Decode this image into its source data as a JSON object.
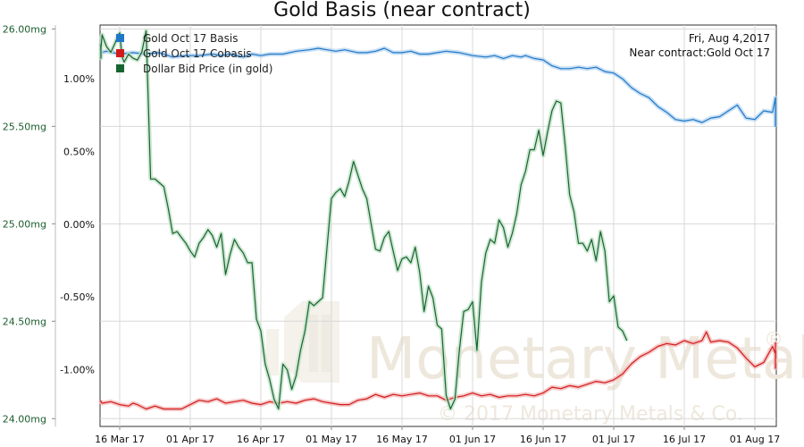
{
  "chart_data": {
    "type": "line",
    "title": "Gold Basis (near contract)",
    "date_info": "Fri, Aug 4,2017",
    "contract_info": "Near contract:Gold Oct 17",
    "watermark": {
      "name": "Monetary Metals",
      "copyright": "© 2017 Monetary Metals & Co.",
      "mark": "®"
    },
    "left_axis": {
      "ticks": [
        24.0,
        24.5,
        25.0,
        25.5,
        26.0
      ],
      "tick_labels": [
        "24.00mg",
        "24.50mg",
        "25.00mg",
        "25.50mg",
        "26.00mg"
      ],
      "ylim": [
        23.96,
        26.02
      ]
    },
    "right_axis": {
      "ticks": [
        -1.0,
        -0.5,
        0.0,
        0.5,
        1.0
      ],
      "tick_labels": [
        "-1.00%",
        "-0.50%",
        "0.00%",
        "0.50%",
        "1.00%"
      ],
      "ylim": [
        -1.39,
        1.37
      ]
    },
    "x_axis": {
      "ticks": [
        8,
        24,
        40,
        56,
        72,
        88,
        104,
        120,
        136,
        152
      ],
      "tick_labels": [
        "16 Mar 17",
        "01 Apr 17",
        "16 Apr 17",
        "01 May 17",
        "16 May 17",
        "01 Jun 17",
        "16 Jun 17",
        "01 Jul 17",
        "16 Jul 17",
        "01 Aug 17"
      ],
      "xlim": [
        0,
        155
      ]
    },
    "grid": true,
    "legend_position": "top-left",
    "series": [
      {
        "name": "Gold Oct 17 Basis",
        "color": "#1f78c8",
        "axis": "right",
        "points": [
          [
            0,
            1.17
          ],
          [
            1,
            1.16
          ],
          [
            2,
            1.18
          ],
          [
            5,
            1.19
          ],
          [
            8,
            1.17
          ],
          [
            11,
            1.18
          ],
          [
            14,
            1.17
          ],
          [
            17,
            1.18
          ],
          [
            20,
            1.15
          ],
          [
            23,
            1.16
          ],
          [
            26,
            1.16
          ],
          [
            29,
            1.17
          ],
          [
            31,
            1.16
          ],
          [
            33,
            1.17
          ],
          [
            36,
            1.15
          ],
          [
            38,
            1.17
          ],
          [
            40,
            1.16
          ],
          [
            42,
            1.17
          ],
          [
            45,
            1.17
          ],
          [
            48,
            1.19
          ],
          [
            51,
            1.2
          ],
          [
            53,
            1.21
          ],
          [
            55,
            1.2
          ],
          [
            57,
            1.19
          ],
          [
            59,
            1.2
          ],
          [
            62,
            1.18
          ],
          [
            64,
            1.18
          ],
          [
            66,
            1.19
          ],
          [
            68,
            1.21
          ],
          [
            70,
            1.18
          ],
          [
            72,
            1.18
          ],
          [
            74,
            1.19
          ],
          [
            76,
            1.17
          ],
          [
            78,
            1.17
          ],
          [
            80,
            1.18
          ],
          [
            82,
            1.19
          ],
          [
            85,
            1.18
          ],
          [
            88,
            1.16
          ],
          [
            91,
            1.15
          ],
          [
            93,
            1.16
          ],
          [
            95,
            1.14
          ],
          [
            97,
            1.16
          ],
          [
            99,
            1.15
          ],
          [
            100,
            1.16
          ],
          [
            102,
            1.14
          ],
          [
            104,
            1.13
          ],
          [
            106,
            1.09
          ],
          [
            108,
            1.07
          ],
          [
            110,
            1.07
          ],
          [
            112,
            1.08
          ],
          [
            114,
            1.07
          ],
          [
            116,
            1.08
          ],
          [
            118,
            1.05
          ],
          [
            120,
            1.04
          ],
          [
            122,
            1.0
          ],
          [
            124,
            0.94
          ],
          [
            126,
            0.9
          ],
          [
            128,
            0.87
          ],
          [
            130,
            0.81
          ],
          [
            132,
            0.77
          ],
          [
            134,
            0.72
          ],
          [
            136,
            0.71
          ],
          [
            138,
            0.72
          ],
          [
            140,
            0.7
          ],
          [
            142,
            0.73
          ],
          [
            144,
            0.74
          ],
          [
            146,
            0.78
          ],
          [
            148,
            0.82
          ],
          [
            150,
            0.73
          ],
          [
            152,
            0.72
          ],
          [
            154,
            0.78
          ],
          [
            156,
            0.77
          ],
          [
            158,
            0.87
          ],
          [
            160,
            0.86
          ],
          [
            162,
            0.67
          ]
        ]
      },
      {
        "name": "Gold Oct 17 Cobasis",
        "color": "#d21a1a",
        "axis": "right",
        "points": [
          [
            0,
            -1.21
          ],
          [
            2,
            -1.22
          ],
          [
            4,
            -1.23
          ],
          [
            6,
            -1.22
          ],
          [
            8,
            -1.24
          ],
          [
            10,
            -1.25
          ],
          [
            11,
            -1.23
          ],
          [
            12,
            -1.24
          ],
          [
            14,
            -1.27
          ],
          [
            16,
            -1.25
          ],
          [
            18,
            -1.27
          ],
          [
            20,
            -1.27
          ],
          [
            22,
            -1.27
          ],
          [
            24,
            -1.24
          ],
          [
            26,
            -1.21
          ],
          [
            28,
            -1.22
          ],
          [
            30,
            -1.2
          ],
          [
            32,
            -1.23
          ],
          [
            34,
            -1.22
          ],
          [
            36,
            -1.21
          ],
          [
            38,
            -1.23
          ],
          [
            40,
            -1.24
          ],
          [
            42,
            -1.22
          ],
          [
            44,
            -1.23
          ],
          [
            46,
            -1.22
          ],
          [
            48,
            -1.23
          ],
          [
            50,
            -1.21
          ],
          [
            52,
            -1.2
          ],
          [
            54,
            -1.22
          ],
          [
            56,
            -1.23
          ],
          [
            58,
            -1.24
          ],
          [
            60,
            -1.24
          ],
          [
            62,
            -1.21
          ],
          [
            64,
            -1.2
          ],
          [
            66,
            -1.17
          ],
          [
            68,
            -1.19
          ],
          [
            70,
            -1.17
          ],
          [
            72,
            -1.18
          ],
          [
            74,
            -1.17
          ],
          [
            76,
            -1.16
          ],
          [
            78,
            -1.18
          ],
          [
            80,
            -1.18
          ],
          [
            82,
            -1.21
          ],
          [
            84,
            -1.19
          ],
          [
            86,
            -1.18
          ],
          [
            88,
            -1.16
          ],
          [
            90,
            -1.18
          ],
          [
            92,
            -1.17
          ],
          [
            94,
            -1.19
          ],
          [
            96,
            -1.18
          ],
          [
            98,
            -1.18
          ],
          [
            100,
            -1.17
          ],
          [
            102,
            -1.18
          ],
          [
            104,
            -1.16
          ],
          [
            106,
            -1.12
          ],
          [
            108,
            -1.13
          ],
          [
            110,
            -1.11
          ],
          [
            112,
            -1.12
          ],
          [
            114,
            -1.1
          ],
          [
            116,
            -1.08
          ],
          [
            118,
            -1.09
          ],
          [
            120,
            -1.07
          ],
          [
            122,
            -1.03
          ],
          [
            124,
            -0.96
          ],
          [
            126,
            -0.91
          ],
          [
            128,
            -0.88
          ],
          [
            130,
            -0.84
          ],
          [
            132,
            -0.82
          ],
          [
            134,
            -0.83
          ],
          [
            136,
            -0.8
          ],
          [
            138,
            -0.82
          ],
          [
            140,
            -0.8
          ],
          [
            141,
            -0.74
          ],
          [
            142,
            -0.81
          ],
          [
            144,
            -0.8
          ],
          [
            146,
            -0.81
          ],
          [
            148,
            -0.85
          ],
          [
            150,
            -0.92
          ],
          [
            152,
            -0.98
          ],
          [
            154,
            -0.95
          ],
          [
            156,
            -0.84
          ],
          [
            158,
            -0.89
          ],
          [
            159,
            -0.99
          ],
          [
            160,
            -0.96
          ],
          [
            161,
            -0.97
          ],
          [
            162,
            -0.81
          ]
        ]
      },
      {
        "name": "Dollar Bid Price (in gold)",
        "color": "#16652f",
        "axis": "left",
        "points": [
          [
            0,
            25.87
          ],
          [
            1,
            25.92
          ],
          [
            2,
            25.85
          ],
          [
            3,
            25.9
          ],
          [
            4,
            25.97
          ],
          [
            5,
            25.91
          ],
          [
            6,
            25.88
          ],
          [
            7,
            25.93
          ],
          [
            7.5,
            25.96
          ],
          [
            8,
            25.98
          ],
          [
            8.5,
            25.86
          ],
          [
            9,
            25.83
          ],
          [
            10,
            25.87
          ],
          [
            11,
            25.85
          ],
          [
            12,
            25.84
          ],
          [
            13,
            25.88
          ],
          [
            14,
            25.99
          ],
          [
            15,
            25.23
          ],
          [
            16,
            25.23
          ],
          [
            17,
            25.21
          ],
          [
            18,
            25.19
          ],
          [
            19,
            25.08
          ],
          [
            20,
            24.95
          ],
          [
            21,
            24.96
          ],
          [
            22,
            24.93
          ],
          [
            23,
            24.9
          ],
          [
            24,
            24.86
          ],
          [
            25,
            24.83
          ],
          [
            26,
            24.9
          ],
          [
            27,
            24.93
          ],
          [
            28,
            24.97
          ],
          [
            29,
            24.94
          ],
          [
            30,
            24.88
          ],
          [
            31,
            24.95
          ],
          [
            32,
            24.74
          ],
          [
            33,
            24.84
          ],
          [
            34,
            24.92
          ],
          [
            35,
            24.88
          ],
          [
            36,
            24.85
          ],
          [
            37,
            24.8
          ],
          [
            38,
            24.8
          ],
          [
            39,
            24.51
          ],
          [
            40,
            24.45
          ],
          [
            41,
            24.28
          ],
          [
            42,
            24.2
          ],
          [
            43,
            24.1
          ],
          [
            44,
            24.05
          ],
          [
            45,
            24.28
          ],
          [
            46,
            24.25
          ],
          [
            47,
            24.15
          ],
          [
            48,
            24.22
          ],
          [
            49,
            24.35
          ],
          [
            50,
            24.45
          ],
          [
            51,
            24.6
          ],
          [
            52,
            24.58
          ],
          [
            53,
            24.6
          ],
          [
            54,
            24.62
          ],
          [
            55,
            24.88
          ],
          [
            56,
            25.13
          ],
          [
            57,
            25.16
          ],
          [
            58,
            25.18
          ],
          [
            59,
            25.14
          ],
          [
            60,
            25.22
          ],
          [
            61,
            25.32
          ],
          [
            62,
            25.25
          ],
          [
            63,
            25.18
          ],
          [
            64,
            25.13
          ],
          [
            65,
            25.0
          ],
          [
            66,
            24.87
          ],
          [
            67,
            24.86
          ],
          [
            68,
            24.93
          ],
          [
            69,
            24.96
          ],
          [
            70,
            24.86
          ],
          [
            71,
            24.76
          ],
          [
            72,
            24.82
          ],
          [
            73,
            24.83
          ],
          [
            74,
            24.8
          ],
          [
            75,
            24.88
          ],
          [
            76,
            24.75
          ],
          [
            77,
            24.55
          ],
          [
            78,
            24.68
          ],
          [
            79,
            24.62
          ],
          [
            80,
            24.48
          ],
          [
            81,
            24.46
          ],
          [
            82,
            24.12
          ],
          [
            83,
            24.05
          ],
          [
            84,
            24.1
          ],
          [
            85,
            24.35
          ],
          [
            86,
            24.55
          ],
          [
            87,
            24.56
          ],
          [
            88,
            24.6
          ],
          [
            89,
            24.35
          ],
          [
            90,
            24.7
          ],
          [
            91,
            24.85
          ],
          [
            92,
            24.92
          ],
          [
            93,
            24.9
          ],
          [
            94,
            25.02
          ],
          [
            95,
            24.98
          ],
          [
            96,
            24.88
          ],
          [
            97,
            24.95
          ],
          [
            98,
            25.05
          ],
          [
            99,
            25.2
          ],
          [
            100,
            25.27
          ],
          [
            101,
            25.38
          ],
          [
            102,
            25.38
          ],
          [
            103,
            25.48
          ],
          [
            104,
            25.35
          ],
          [
            105,
            25.47
          ],
          [
            106,
            25.58
          ],
          [
            107,
            25.63
          ],
          [
            108,
            25.62
          ],
          [
            109,
            25.4
          ],
          [
            110,
            25.15
          ],
          [
            111,
            25.06
          ],
          [
            112,
            24.9
          ],
          [
            113,
            24.9
          ],
          [
            114,
            24.86
          ],
          [
            115,
            24.92
          ],
          [
            116,
            24.81
          ],
          [
            117,
            24.96
          ],
          [
            118,
            24.86
          ],
          [
            119,
            24.6
          ],
          [
            120,
            24.63
          ],
          [
            121,
            24.47
          ],
          [
            122,
            24.45
          ],
          [
            123,
            24.4
          ]
        ]
      }
    ]
  }
}
